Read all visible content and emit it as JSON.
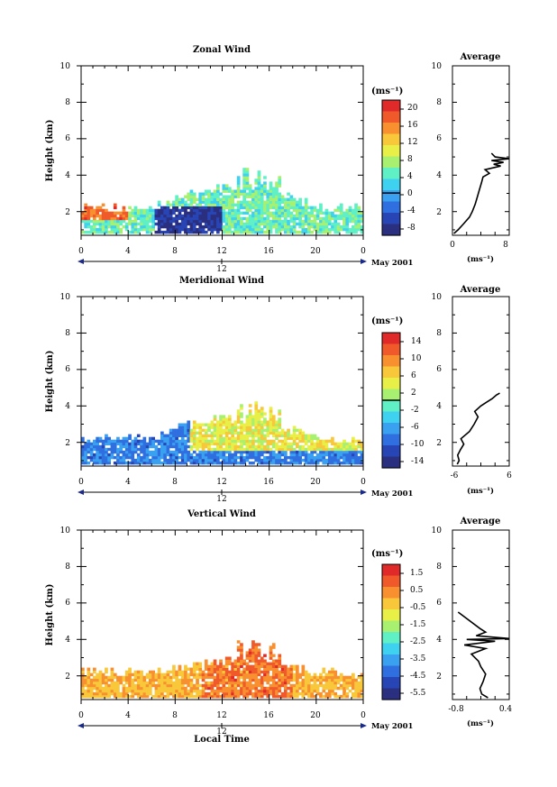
{
  "chart_data": [
    {
      "type": "heatmap",
      "title": "Zonal Wind",
      "ylabel": "Height (km)",
      "xticks": [
        "0",
        "4",
        "8",
        "12",
        "16",
        "20",
        "0"
      ],
      "yticks": [
        "2",
        "4",
        "6",
        "8",
        "10"
      ],
      "xlim": [
        0,
        24
      ],
      "ylim": [
        0.7,
        10
      ],
      "date_marker": "12",
      "date_label": "May 2001",
      "colorbar": {
        "unit": "(ms⁻¹)",
        "ticks": [
          "20",
          "16",
          "12",
          "8",
          "4",
          "0",
          "-4",
          "-8"
        ],
        "range": [
          -10,
          22
        ],
        "contour_level": 0
      },
      "data_extent": {
        "max_height_km": 4.4,
        "typical_top_km": 3.0
      },
      "profile": {
        "title": "Average",
        "xlabel": "(ms⁻¹)",
        "xticks": [
          "0",
          "8"
        ],
        "yticks": [
          "2",
          "4",
          "6",
          "8",
          "10"
        ],
        "xlim": [
          0,
          8
        ],
        "ylim": [
          0.7,
          10
        ],
        "points": [
          [
            0.2,
            0.8
          ],
          [
            0.8,
            1.0
          ],
          [
            1.5,
            1.3
          ],
          [
            2.4,
            1.7
          ],
          [
            2.8,
            2.0
          ],
          [
            3.2,
            2.4
          ],
          [
            3.5,
            2.8
          ],
          [
            3.8,
            3.2
          ],
          [
            4.1,
            3.6
          ],
          [
            4.3,
            3.9
          ],
          [
            5.2,
            4.1
          ],
          [
            4.6,
            4.3
          ],
          [
            6.8,
            4.5
          ],
          [
            5.8,
            4.6
          ],
          [
            7.2,
            4.7
          ],
          [
            5.5,
            4.8
          ],
          [
            8.2,
            4.9
          ],
          [
            6.0,
            5.0
          ],
          [
            5.5,
            5.2
          ]
        ]
      }
    },
    {
      "type": "heatmap",
      "title": "Meridional Wind",
      "ylabel": "Height (km)",
      "xticks": [
        "0",
        "4",
        "8",
        "12",
        "16",
        "20",
        "0"
      ],
      "yticks": [
        "2",
        "4",
        "6",
        "8",
        "10"
      ],
      "xlim": [
        0,
        24
      ],
      "ylim": [
        0.7,
        10
      ],
      "date_marker": "12",
      "date_label": "May 2001",
      "colorbar": {
        "unit": "(ms⁻¹)",
        "ticks": [
          "14",
          "10",
          "6",
          "2",
          "-2",
          "-6",
          "-10",
          "-14"
        ],
        "range": [
          -16,
          16
        ],
        "contour_level": 0
      },
      "data_extent": {
        "max_height_km": 4.4,
        "typical_top_km": 3.0
      },
      "profile": {
        "title": "Average",
        "xlabel": "(ms⁻¹)",
        "xticks": [
          "-6",
          "6"
        ],
        "yticks": [
          "2",
          "4",
          "6",
          "8",
          "10"
        ],
        "xlim": [
          -6,
          6
        ],
        "ylim": [
          0.7,
          10
        ],
        "points": [
          [
            -5.0,
            0.8
          ],
          [
            -4.6,
            1.0
          ],
          [
            -4.9,
            1.3
          ],
          [
            -4.3,
            1.6
          ],
          [
            -3.6,
            1.9
          ],
          [
            -4.2,
            2.2
          ],
          [
            -2.4,
            2.6
          ],
          [
            -1.4,
            3.0
          ],
          [
            -0.6,
            3.4
          ],
          [
            -1.3,
            3.7
          ],
          [
            0.0,
            4.0
          ],
          [
            1.2,
            4.2
          ],
          [
            2.4,
            4.4
          ],
          [
            3.3,
            4.6
          ],
          [
            4.0,
            4.7
          ]
        ]
      }
    },
    {
      "type": "heatmap",
      "title": "Vertical Wind",
      "ylabel": "Height (km)",
      "xlabel": "Local Time",
      "xticks": [
        "0",
        "4",
        "8",
        "12",
        "16",
        "20",
        "0"
      ],
      "yticks": [
        "2",
        "4",
        "6",
        "8",
        "10"
      ],
      "xlim": [
        0,
        24
      ],
      "ylim": [
        0.7,
        10
      ],
      "date_marker": "12",
      "date_label": "May 2001",
      "colorbar": {
        "unit": "(ms⁻¹)",
        "ticks": [
          "1.5",
          "0.5",
          "-0.5",
          "-1.5",
          "-2.5",
          "-3.5",
          "-4.5",
          "-5.5"
        ],
        "range": [
          -6.5,
          2.5
        ],
        "contour_level": null
      },
      "data_extent": {
        "max_height_km": 3.8,
        "typical_top_km": 2.5
      },
      "profile": {
        "title": "Average",
        "xlabel": "(ms⁻¹)",
        "xticks": [
          "-0.8",
          "0.4"
        ],
        "yticks": [
          "2",
          "4",
          "6",
          "8",
          "10"
        ],
        "xlim": [
          -0.8,
          0.4
        ],
        "ylim": [
          0.7,
          10
        ],
        "points": [
          [
            -0.05,
            0.8
          ],
          [
            -0.18,
            1.0
          ],
          [
            -0.22,
            1.3
          ],
          [
            -0.15,
            1.7
          ],
          [
            -0.1,
            2.1
          ],
          [
            -0.2,
            2.5
          ],
          [
            -0.25,
            2.8
          ],
          [
            -0.4,
            3.2
          ],
          [
            -0.1,
            3.5
          ],
          [
            -0.55,
            3.7
          ],
          [
            0.1,
            3.9
          ],
          [
            -0.5,
            4.0
          ],
          [
            0.4,
            4.05
          ],
          [
            -0.3,
            4.2
          ],
          [
            -0.1,
            4.4
          ],
          [
            -0.22,
            4.6
          ],
          [
            -0.68,
            5.5
          ]
        ]
      }
    }
  ]
}
